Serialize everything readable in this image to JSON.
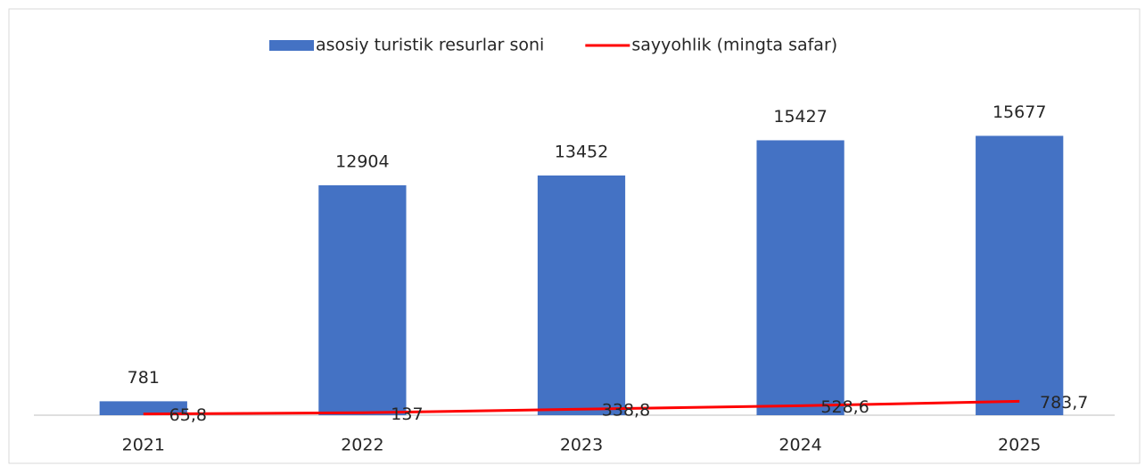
{
  "chart_data": {
    "type": "bar",
    "categories": [
      "2021",
      "2022",
      "2023",
      "2024",
      "2025"
    ],
    "series": [
      {
        "name": "asosiy turistik resurlar soni",
        "type": "bar",
        "color": "#4472c4",
        "values": [
          781,
          12904,
          13452,
          15427,
          15677
        ]
      },
      {
        "name": "sayyohlik (mingta safar)",
        "type": "line",
        "color": "#ff0000",
        "values": [
          65.8,
          137,
          338.8,
          528.6,
          783.7
        ],
        "value_labels": [
          "65,8",
          "137",
          "338,8",
          "528,6",
          "783,7"
        ]
      }
    ],
    "ylim": [
      0,
      18000
    ],
    "legend": "top"
  }
}
